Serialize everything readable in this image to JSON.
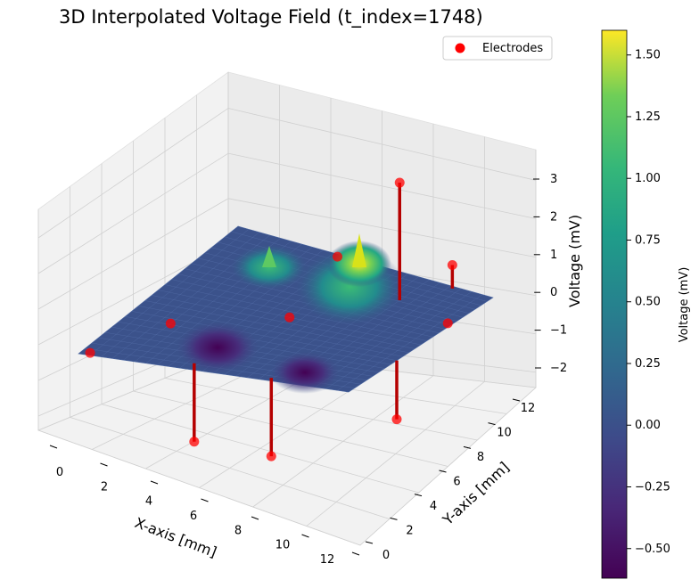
{
  "chart_data": {
    "type": "surface",
    "title": "3D Interpolated Voltage Field (t_index=1748)",
    "xlabel": "X-axis [mm]",
    "ylabel": "Y-axis [mm]",
    "zlabel": "Voltage (mV)",
    "colorbar_label": "Voltage (mV)",
    "colormap": "viridis",
    "xlim": [
      0,
      12
    ],
    "ylim": [
      0,
      12
    ],
    "zlim": [
      -2,
      3.5
    ],
    "clim": [
      -0.62,
      1.6
    ],
    "x_ticks": [
      "0",
      "2",
      "4",
      "6",
      "8",
      "10",
      "12"
    ],
    "y_ticks": [
      "0",
      "2",
      "4",
      "6",
      "8",
      "10",
      "12"
    ],
    "z_ticks": [
      "3",
      "2",
      "1",
      "0",
      "−1",
      "−2"
    ],
    "colorbar_ticks": [
      "1.50",
      "1.25",
      "1.00",
      "0.75",
      "0.50",
      "0.25",
      "0.00",
      "−0.25",
      "−0.50"
    ],
    "legend": {
      "label": "Electrodes",
      "marker_color": "#ff0000",
      "placement": "top-right"
    },
    "series": [
      {
        "name": "Electrodes",
        "marker": "circle",
        "color": "#ff0000",
        "points": [
          {
            "x": 0.4,
            "y": 0.2,
            "z": 0.0
          },
          {
            "x": 2.0,
            "y": 3.6,
            "z": 0.0
          },
          {
            "x": 4.8,
            "y": 0.6,
            "z": -2.0
          },
          {
            "x": 8.4,
            "y": 0.3,
            "z": -2.0
          },
          {
            "x": 12.0,
            "y": 4.0,
            "z": -1.5
          },
          {
            "x": 11.8,
            "y": 8.6,
            "z": 0.0
          },
          {
            "x": 10.2,
            "y": 11.8,
            "z": 0.6
          },
          {
            "x": 9.0,
            "y": 9.6,
            "z": 3.0
          },
          {
            "x": 4.8,
            "y": 11.8,
            "z": 0.0
          },
          {
            "x": 6.0,
            "y": 6.0,
            "z": 0.0
          }
        ]
      }
    ],
    "surface_peaks": [
      {
        "x": 8.4,
        "y": 9.2,
        "z": 1.6
      },
      {
        "x": 4.8,
        "y": 8.9,
        "z": 0.9
      },
      {
        "x": 3.6,
        "y": 3.5,
        "z": -0.6
      },
      {
        "x": 7.0,
        "y": 2.8,
        "z": -0.5
      }
    ]
  }
}
